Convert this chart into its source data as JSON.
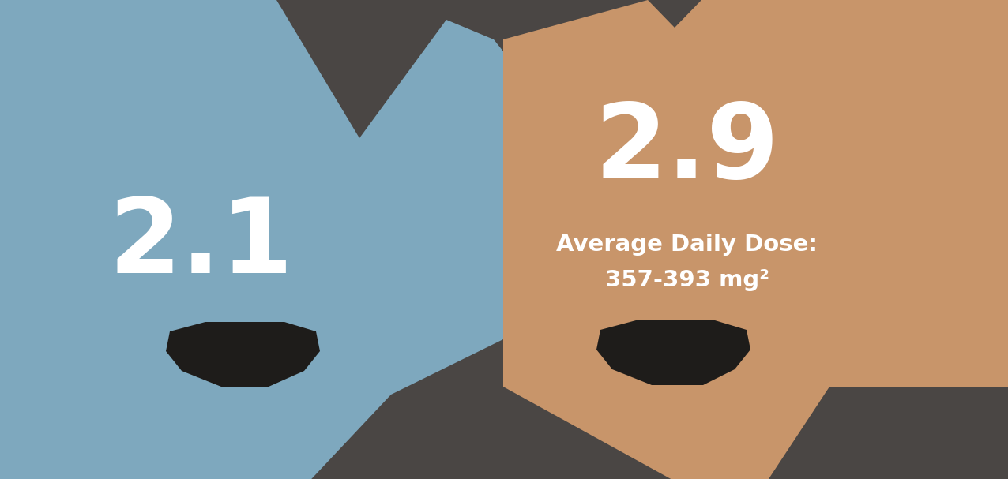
{
  "left_value": "2.1",
  "right_value": "2.9",
  "right_subtitle_line1": "Average Daily Dose:",
  "right_subtitle_line2": "357-393 mg²",
  "left_color": "#7EA8BE",
  "right_color": "#C8956A",
  "dark_color": "#1E1C1A",
  "text_color": "#FFFFFF",
  "bg_color": "#FFFFFF",
  "gray_bg": "#4A4644"
}
